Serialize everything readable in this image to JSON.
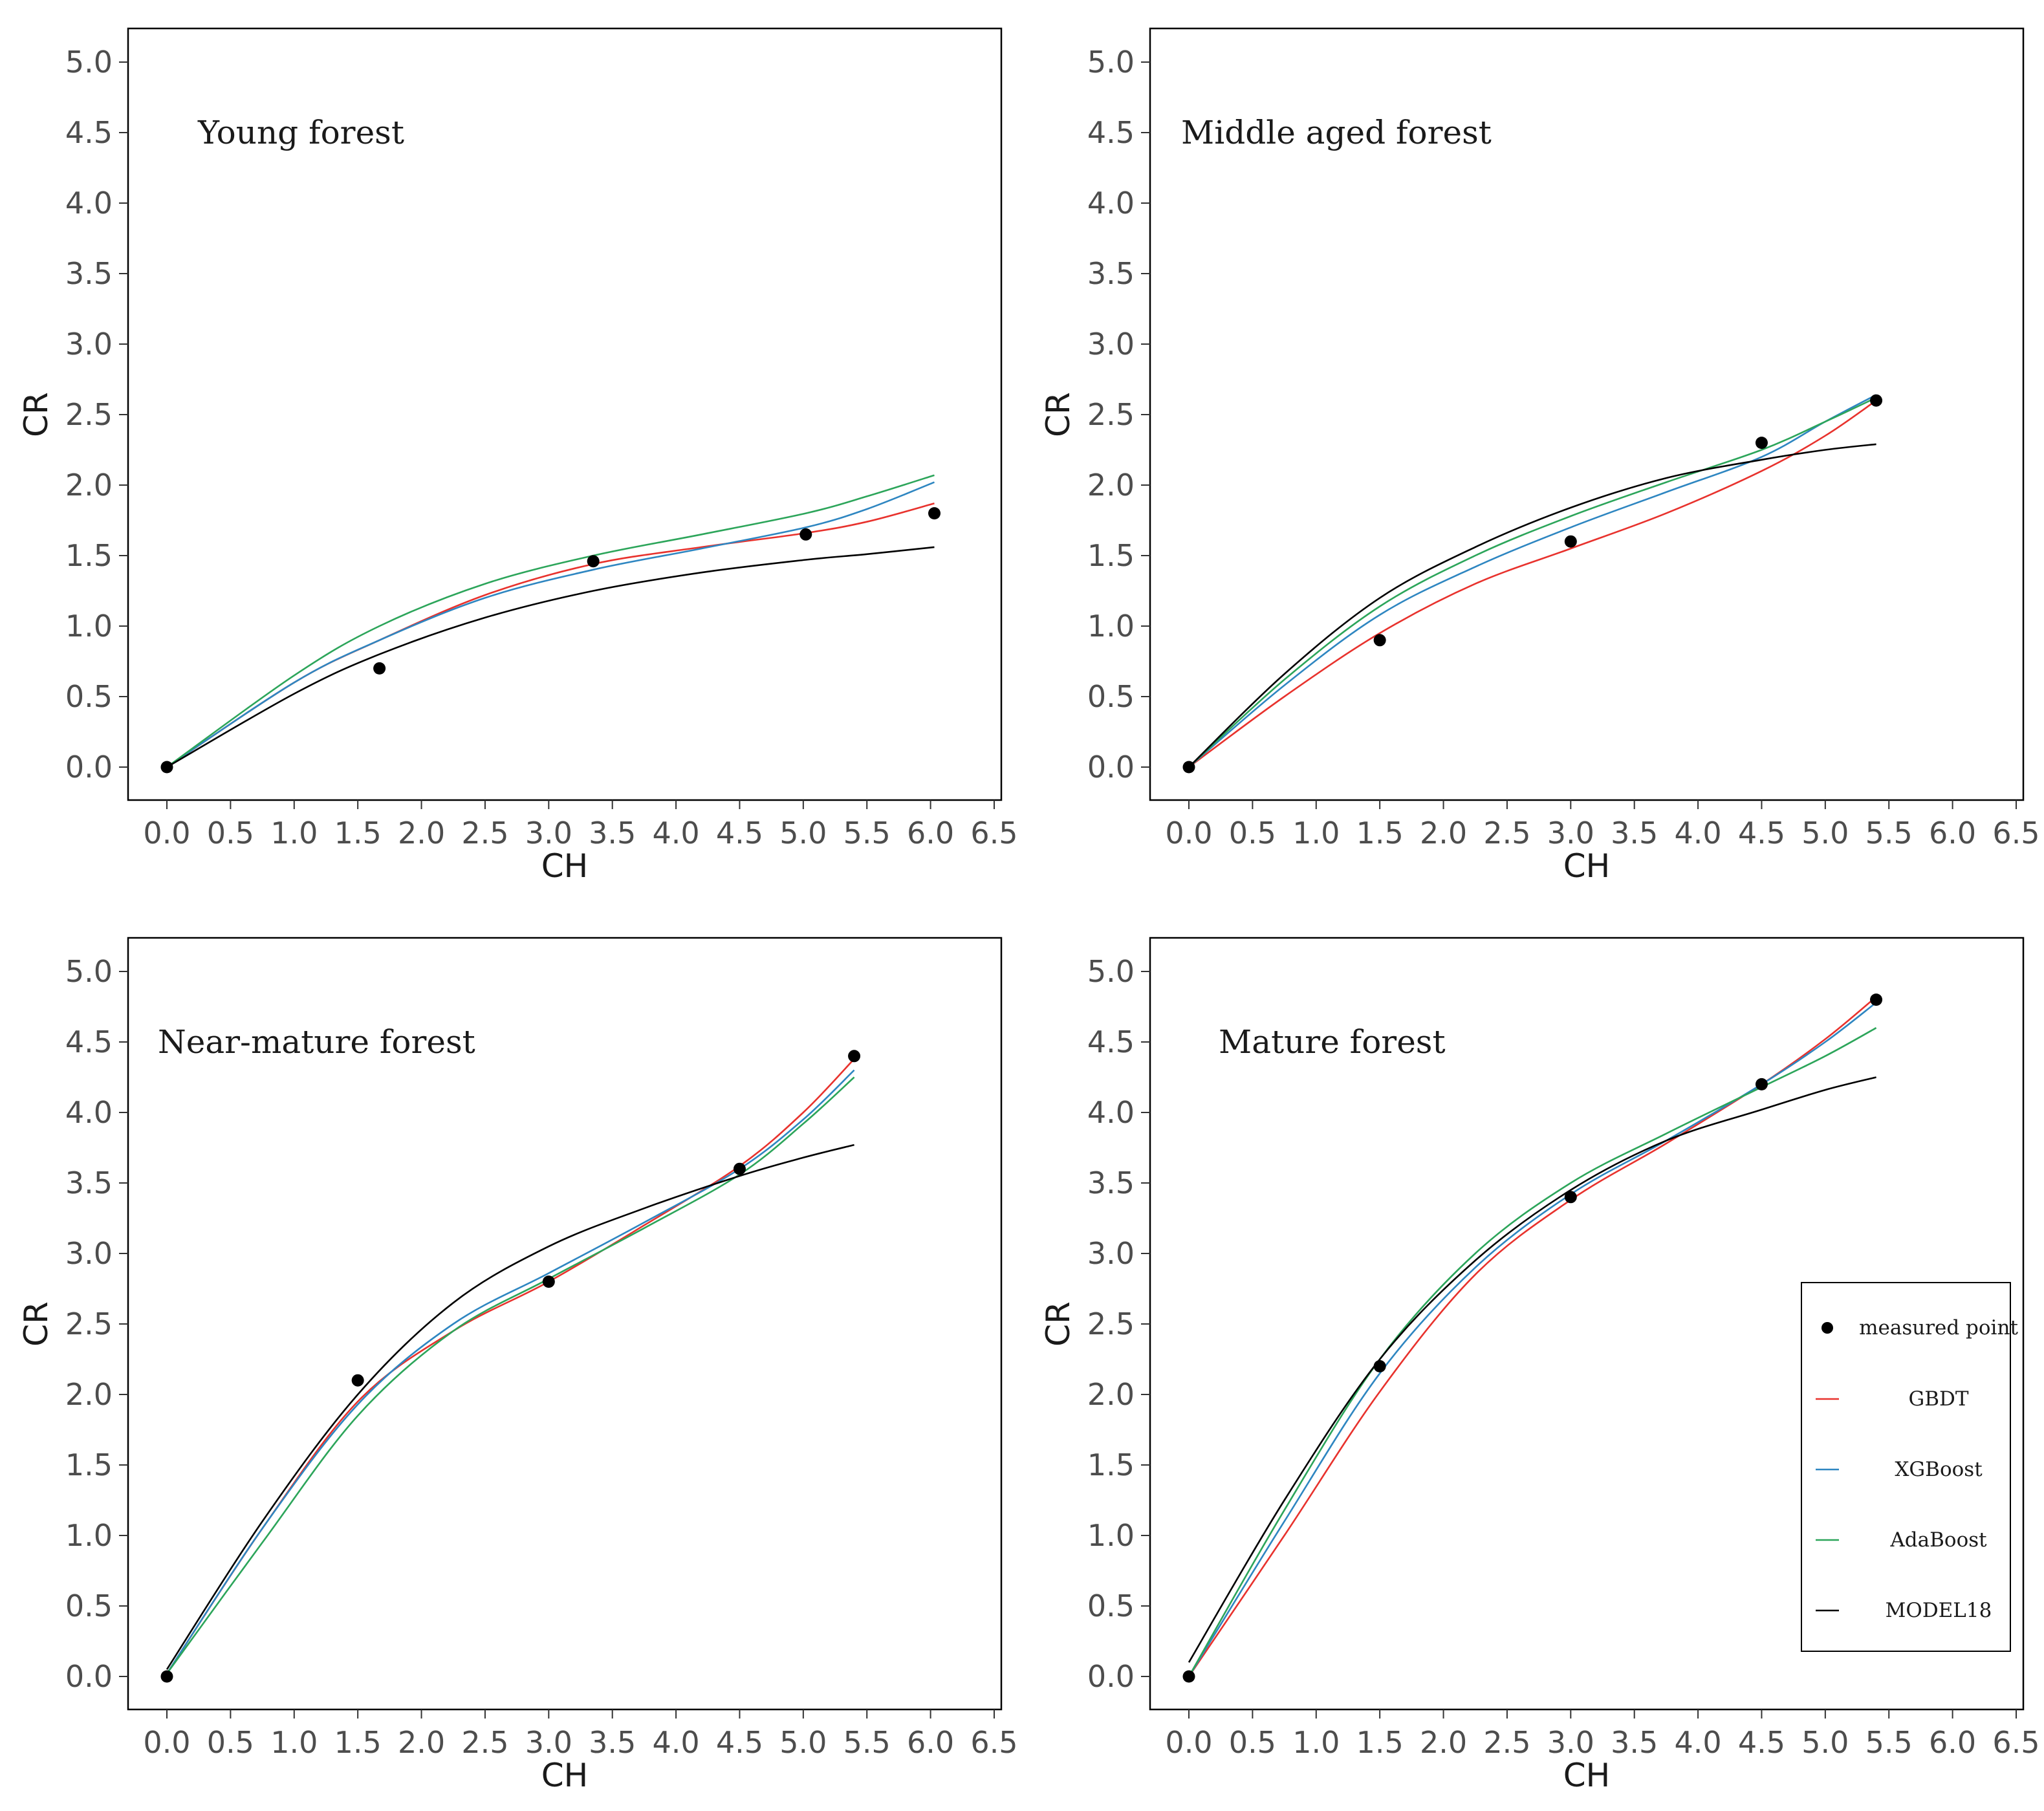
{
  "figure": {
    "description_free": true
  },
  "legend": [
    {
      "key": "measured",
      "label": "measured point",
      "color": "#000000",
      "kind": "point"
    },
    {
      "key": "gbdt",
      "label": "GBDT",
      "color": "#e8322d",
      "kind": "line"
    },
    {
      "key": "xgboost",
      "label": "XGBoost",
      "color": "#2e86c1",
      "kind": "line"
    },
    {
      "key": "adaboost",
      "label": "AdaBoost",
      "color": "#2ca55a",
      "kind": "line"
    },
    {
      "key": "model18",
      "label": "MODEL18",
      "color": "#000000",
      "kind": "line"
    }
  ],
  "chart_data": [
    {
      "type": "line",
      "title": "Young forest",
      "xlabel": "CH",
      "ylabel": "CR",
      "xlim": [
        0,
        6.5
      ],
      "ylim": [
        0,
        5.0
      ],
      "x_ticks": [
        "0.0",
        "0.5",
        "1.0",
        "1.5",
        "2.0",
        "2.5",
        "3.0",
        "3.5",
        "4.0",
        "4.5",
        "5.0",
        "5.5",
        "6.0",
        "6.5"
      ],
      "y_ticks": [
        "0.0",
        "0.5",
        "1.0",
        "1.5",
        "2.0",
        "2.5",
        "3.0",
        "3.5",
        "4.0",
        "4.5",
        "5.0"
      ],
      "points": [
        [
          0,
          0
        ],
        [
          1.67,
          0.7
        ],
        [
          3.35,
          1.46
        ],
        [
          5.02,
          1.65
        ],
        [
          6.03,
          1.8
        ]
      ],
      "series": [
        {
          "name": "GBDT",
          "key": "gbdt",
          "x": [
            0,
            1,
            1.67,
            2.5,
            3.35,
            4.2,
            5.02,
            5.5,
            6.03
          ],
          "y": [
            0,
            0.6,
            0.9,
            1.22,
            1.44,
            1.56,
            1.66,
            1.74,
            1.87
          ]
        },
        {
          "name": "XGBoost",
          "key": "xgboost",
          "x": [
            0,
            1,
            1.67,
            2.5,
            3.35,
            4.2,
            5.02,
            5.5,
            6.03
          ],
          "y": [
            0,
            0.6,
            0.9,
            1.2,
            1.4,
            1.55,
            1.7,
            1.83,
            2.02
          ]
        },
        {
          "name": "AdaBoost",
          "key": "adaboost",
          "x": [
            0,
            1,
            1.67,
            2.5,
            3.35,
            4.2,
            5.02,
            5.5,
            6.03
          ],
          "y": [
            0,
            0.65,
            1.0,
            1.3,
            1.5,
            1.65,
            1.8,
            1.92,
            2.07
          ]
        },
        {
          "name": "MODEL18",
          "key": "model18",
          "x": [
            0,
            1,
            1.67,
            2.5,
            3.35,
            4.2,
            5.02,
            5.5,
            6.03
          ],
          "y": [
            0,
            0.52,
            0.8,
            1.06,
            1.25,
            1.38,
            1.47,
            1.51,
            1.56
          ]
        }
      ]
    },
    {
      "type": "line",
      "title": "Middle aged forest",
      "xlabel": "CH",
      "ylabel": "CR",
      "xlim": [
        0,
        6.5
      ],
      "ylim": [
        0,
        5.0
      ],
      "x_ticks": [
        "0.0",
        "0.5",
        "1.0",
        "1.5",
        "2.0",
        "2.5",
        "3.0",
        "3.5",
        "4.0",
        "4.5",
        "5.0",
        "5.5",
        "6.0",
        "6.5"
      ],
      "y_ticks": [
        "0.0",
        "0.5",
        "1.0",
        "1.5",
        "2.0",
        "2.5",
        "3.0",
        "3.5",
        "4.0",
        "4.5",
        "5.0"
      ],
      "points": [
        [
          0,
          0
        ],
        [
          1.5,
          0.9
        ],
        [
          3.0,
          1.6
        ],
        [
          4.5,
          2.3
        ],
        [
          5.4,
          2.6
        ]
      ],
      "series": [
        {
          "name": "GBDT",
          "key": "gbdt",
          "x": [
            0,
            0.75,
            1.5,
            2.25,
            3.0,
            3.75,
            4.5,
            5.0,
            5.4
          ],
          "y": [
            0,
            0.5,
            0.95,
            1.3,
            1.55,
            1.8,
            2.1,
            2.35,
            2.6
          ]
        },
        {
          "name": "XGBoost",
          "key": "xgboost",
          "x": [
            0,
            0.75,
            1.5,
            2.25,
            3.0,
            3.75,
            4.5,
            5.0,
            5.4
          ],
          "y": [
            0,
            0.58,
            1.08,
            1.42,
            1.7,
            1.95,
            2.2,
            2.45,
            2.64
          ]
        },
        {
          "name": "AdaBoost",
          "key": "adaboost",
          "x": [
            0,
            0.75,
            1.5,
            2.25,
            3.0,
            3.75,
            4.5,
            5.0,
            5.4
          ],
          "y": [
            0,
            0.62,
            1.14,
            1.5,
            1.78,
            2.02,
            2.25,
            2.45,
            2.62
          ]
        },
        {
          "name": "MODEL18",
          "key": "model18",
          "x": [
            0,
            0.75,
            1.5,
            2.25,
            3.0,
            3.75,
            4.5,
            5.0,
            5.4
          ],
          "y": [
            0,
            0.66,
            1.2,
            1.56,
            1.84,
            2.05,
            2.18,
            2.25,
            2.29
          ]
        }
      ]
    },
    {
      "type": "line",
      "title": "Near-mature forest",
      "xlabel": "CH",
      "ylabel": "CR",
      "xlim": [
        0,
        6.5
      ],
      "ylim": [
        0,
        5.0
      ],
      "x_ticks": [
        "0.0",
        "0.5",
        "1.0",
        "1.5",
        "2.0",
        "2.5",
        "3.0",
        "3.5",
        "4.0",
        "4.5",
        "5.0",
        "5.5",
        "6.0",
        "6.5"
      ],
      "y_ticks": [
        "0.0",
        "0.5",
        "1.0",
        "1.5",
        "2.0",
        "2.5",
        "3.0",
        "3.5",
        "4.0",
        "4.5",
        "5.0"
      ],
      "points": [
        [
          0,
          0
        ],
        [
          1.5,
          2.1
        ],
        [
          3.0,
          2.8
        ],
        [
          4.5,
          3.6
        ],
        [
          5.4,
          4.4
        ]
      ],
      "series": [
        {
          "name": "GBDT",
          "key": "gbdt",
          "x": [
            0,
            0.75,
            1.5,
            2.25,
            3.0,
            3.75,
            4.5,
            5.0,
            5.4
          ],
          "y": [
            0.02,
            1.05,
            1.95,
            2.45,
            2.8,
            3.2,
            3.62,
            4.0,
            4.38
          ]
        },
        {
          "name": "XGBoost",
          "key": "xgboost",
          "x": [
            0,
            0.75,
            1.5,
            2.25,
            3.0,
            3.75,
            4.5,
            5.0,
            5.4
          ],
          "y": [
            0.02,
            1.05,
            1.93,
            2.5,
            2.86,
            3.22,
            3.6,
            3.95,
            4.3
          ]
        },
        {
          "name": "AdaBoost",
          "key": "adaboost",
          "x": [
            0,
            0.75,
            1.5,
            2.25,
            3.0,
            3.75,
            4.5,
            5.0,
            5.4
          ],
          "y": [
            0.02,
            0.95,
            1.85,
            2.45,
            2.82,
            3.18,
            3.56,
            3.92,
            4.25
          ]
        },
        {
          "name": "MODEL18",
          "key": "model18",
          "x": [
            0,
            0.75,
            1.5,
            2.25,
            3.0,
            3.75,
            4.5,
            5.0,
            5.4
          ],
          "y": [
            0.05,
            1.1,
            2.0,
            2.65,
            3.05,
            3.32,
            3.55,
            3.68,
            3.77
          ]
        }
      ]
    },
    {
      "type": "line",
      "title": "Mature forest",
      "xlabel": "CH",
      "ylabel": "CR",
      "xlim": [
        0,
        6.5
      ],
      "ylim": [
        0,
        5.0
      ],
      "x_ticks": [
        "0.0",
        "0.5",
        "1.0",
        "1.5",
        "2.0",
        "2.5",
        "3.0",
        "3.5",
        "4.0",
        "4.5",
        "5.0",
        "5.5",
        "6.0",
        "6.5"
      ],
      "y_ticks": [
        "0.0",
        "0.5",
        "1.0",
        "1.5",
        "2.0",
        "2.5",
        "3.0",
        "3.5",
        "4.0",
        "4.5",
        "5.0"
      ],
      "points": [
        [
          0,
          0
        ],
        [
          1.5,
          2.2
        ],
        [
          3.0,
          3.4
        ],
        [
          4.5,
          4.2
        ],
        [
          5.4,
          4.8
        ]
      ],
      "series": [
        {
          "name": "GBDT",
          "key": "gbdt",
          "x": [
            0,
            0.75,
            1.5,
            2.25,
            3.0,
            3.75,
            4.5,
            5.0,
            5.4
          ],
          "y": [
            0,
            1.0,
            2.02,
            2.85,
            3.38,
            3.78,
            4.2,
            4.52,
            4.82
          ]
        },
        {
          "name": "XGBoost",
          "key": "xgboost",
          "x": [
            0,
            0.75,
            1.5,
            2.25,
            3.0,
            3.75,
            4.5,
            5.0,
            5.4
          ],
          "y": [
            0,
            1.1,
            2.15,
            2.9,
            3.42,
            3.8,
            4.2,
            4.5,
            4.78
          ]
        },
        {
          "name": "AdaBoost",
          "key": "adaboost",
          "x": [
            0,
            0.75,
            1.5,
            2.25,
            3.0,
            3.75,
            4.5,
            5.0,
            5.4
          ],
          "y": [
            0,
            1.18,
            2.25,
            3.0,
            3.5,
            3.85,
            4.18,
            4.4,
            4.6
          ]
        },
        {
          "name": "MODEL18",
          "key": "model18",
          "x": [
            0,
            0.75,
            1.5,
            2.25,
            3.0,
            3.75,
            4.5,
            5.0,
            5.4
          ],
          "y": [
            0.1,
            1.25,
            2.25,
            2.95,
            3.45,
            3.8,
            4.02,
            4.16,
            4.25
          ]
        }
      ]
    }
  ]
}
